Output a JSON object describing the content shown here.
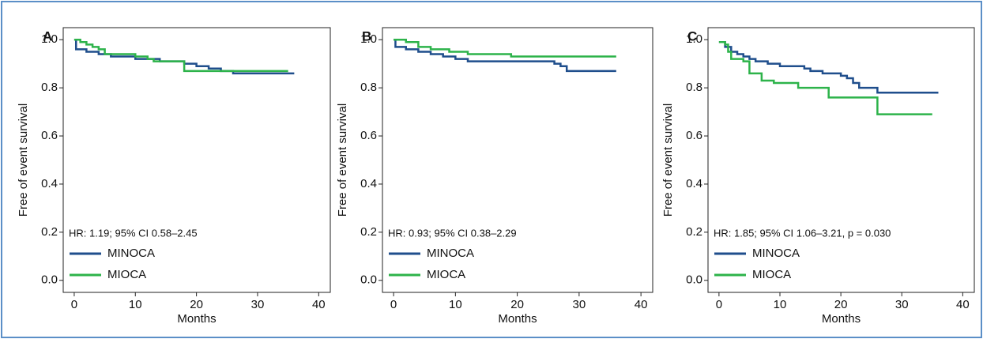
{
  "chart_data": [
    {
      "type": "step",
      "panel_label": "A",
      "xlabel": "Months",
      "ylabel": "Free of event survival",
      "annotation": "HR: 1.19; 95% CI 0.58–2.45",
      "xlim": [
        -1.8,
        41.9
      ],
      "ylim": [
        -0.05,
        1.05
      ],
      "xticks": [
        0,
        10,
        20,
        30,
        40
      ],
      "yticks": [
        {
          "value": 0,
          "label": "0.0"
        },
        0.2,
        0.4,
        0.6,
        0.8,
        {
          "value": 1,
          "label": "1.0"
        }
      ],
      "series": [
        {
          "name": "MINOCA",
          "color": "#1f4e8c",
          "x": [
            0,
            0.3,
            2,
            4,
            6,
            10,
            14,
            18,
            20,
            22,
            24,
            26,
            36
          ],
          "values": [
            1.0,
            0.96,
            0.95,
            0.94,
            0.93,
            0.92,
            0.91,
            0.9,
            0.89,
            0.88,
            0.87,
            0.86,
            0.86
          ]
        },
        {
          "name": "MIOCA",
          "color": "#2db34a",
          "x": [
            0,
            1,
            2,
            3,
            4,
            5,
            10,
            12,
            13,
            18,
            35
          ],
          "values": [
            1.0,
            0.99,
            0.98,
            0.97,
            0.96,
            0.94,
            0.93,
            0.92,
            0.91,
            0.87,
            0.87
          ]
        }
      ]
    },
    {
      "type": "step",
      "panel_label": "B",
      "xlabel": "Months",
      "ylabel": "Free of event survival",
      "annotation": "HR: 0.93; 95% CI 0.38–2.29",
      "xlim": [
        -1.8,
        41.9
      ],
      "ylim": [
        -0.05,
        1.05
      ],
      "xticks": [
        0,
        10,
        20,
        30,
        40
      ],
      "yticks": [
        {
          "value": 0,
          "label": "0.0"
        },
        0.2,
        0.4,
        0.6,
        0.8,
        {
          "value": 1,
          "label": "1.0"
        }
      ],
      "series": [
        {
          "name": "MINOCA",
          "color": "#1f4e8c",
          "x": [
            0,
            0.3,
            2,
            4,
            6,
            8,
            10,
            12,
            26,
            27,
            28,
            36
          ],
          "values": [
            1.0,
            0.97,
            0.96,
            0.95,
            0.94,
            0.93,
            0.92,
            0.91,
            0.9,
            0.89,
            0.87,
            0.87
          ]
        },
        {
          "name": "MIOCA",
          "color": "#2db34a",
          "x": [
            0,
            2,
            4,
            6,
            9,
            12,
            19,
            36
          ],
          "values": [
            1.0,
            0.99,
            0.97,
            0.96,
            0.95,
            0.94,
            0.93,
            0.93
          ]
        }
      ]
    },
    {
      "type": "step",
      "panel_label": "C",
      "xlabel": "Months",
      "ylabel": "Free of event survival",
      "annotation": "HR: 1.85; 95% CI 1.06–3.21, p = 0.030",
      "xlim": [
        -1.8,
        41.9
      ],
      "ylim": [
        -0.05,
        1.05
      ],
      "xticks": [
        0,
        10,
        20,
        30,
        40
      ],
      "yticks": [
        {
          "value": 0,
          "label": "0.0"
        },
        0.2,
        0.4,
        0.6,
        0.8,
        {
          "value": 1,
          "label": "1.0"
        }
      ],
      "series": [
        {
          "name": "MINOCA",
          "color": "#1f4e8c",
          "x": [
            0,
            1,
            2,
            3,
            4,
            5,
            6,
            8,
            10,
            14,
            15,
            17,
            20,
            21,
            22,
            23,
            26,
            36
          ],
          "values": [
            0.99,
            0.97,
            0.95,
            0.94,
            0.93,
            0.92,
            0.91,
            0.9,
            0.89,
            0.88,
            0.87,
            0.86,
            0.85,
            0.84,
            0.82,
            0.8,
            0.78,
            0.78
          ]
        },
        {
          "name": "MIOCA",
          "color": "#2db34a",
          "x": [
            0,
            1,
            1.5,
            2,
            4,
            5,
            7,
            9,
            13,
            18,
            26,
            35
          ],
          "values": [
            0.99,
            0.98,
            0.95,
            0.92,
            0.91,
            0.86,
            0.83,
            0.82,
            0.8,
            0.76,
            0.69,
            0.69
          ]
        }
      ]
    }
  ]
}
